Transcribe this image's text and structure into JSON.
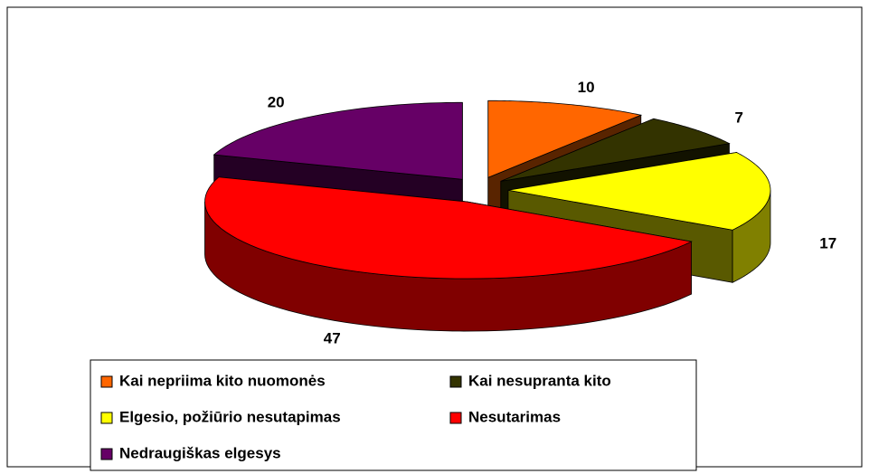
{
  "chart_data": {
    "type": "pie",
    "categories": [
      "Kai nepriima kito nuomonės",
      "Kai nesupranta kito",
      "Elgesio, požiūrio nesutapimas",
      "Nesutarimas",
      "Nedraugiškas elgesys"
    ],
    "values": [
      10,
      7,
      17,
      47,
      20
    ],
    "colors": [
      "#ff6600",
      "#333300",
      "#ffff00",
      "#ff0000",
      "#660066"
    ],
    "legend": "bottom"
  }
}
